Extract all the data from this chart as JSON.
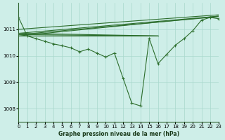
{
  "title": "Graphe pression niveau de la mer (hPa)",
  "bg_color": "#ceeee8",
  "grid_color": "#a8d8cc",
  "line_color": "#2d6e2d",
  "xlim": [
    0,
    23
  ],
  "ylim": [
    1007.5,
    1012.0
  ],
  "yticks": [
    1008,
    1009,
    1010,
    1011
  ],
  "xticks": [
    0,
    1,
    2,
    3,
    4,
    5,
    6,
    7,
    8,
    9,
    10,
    11,
    12,
    13,
    14,
    15,
    16,
    17,
    18,
    19,
    20,
    21,
    22,
    23
  ],
  "main_line": [
    1011.45,
    1010.75,
    1010.65,
    1010.55,
    1010.45,
    1010.38,
    1010.3,
    1010.15,
    1010.25,
    1010.1,
    1009.95,
    1010.1,
    1009.15,
    1008.2,
    1008.1,
    1010.65,
    1009.7,
    1010.05,
    1010.4,
    1010.65,
    1010.95,
    1011.35,
    1011.45,
    1011.4
  ],
  "diag_line": [
    [
      0,
      23
    ],
    [
      1010.75,
      1011.5
    ]
  ],
  "flat_line": [
    [
      0,
      16
    ],
    [
      1010.75,
      1010.75
    ]
  ],
  "fan_lines": [
    [
      [
        0,
        23
      ],
      [
        1011.0,
        1011.55
      ]
    ],
    [
      [
        0,
        23
      ],
      [
        1010.85,
        1011.5
      ]
    ],
    [
      [
        0,
        23
      ],
      [
        1010.8,
        1011.48
      ]
    ]
  ],
  "fan_lines2": [
    [
      [
        0,
        16
      ],
      [
        1010.8,
        1010.75
      ]
    ],
    [
      [
        0,
        16
      ],
      [
        1010.85,
        1010.75
      ]
    ]
  ]
}
